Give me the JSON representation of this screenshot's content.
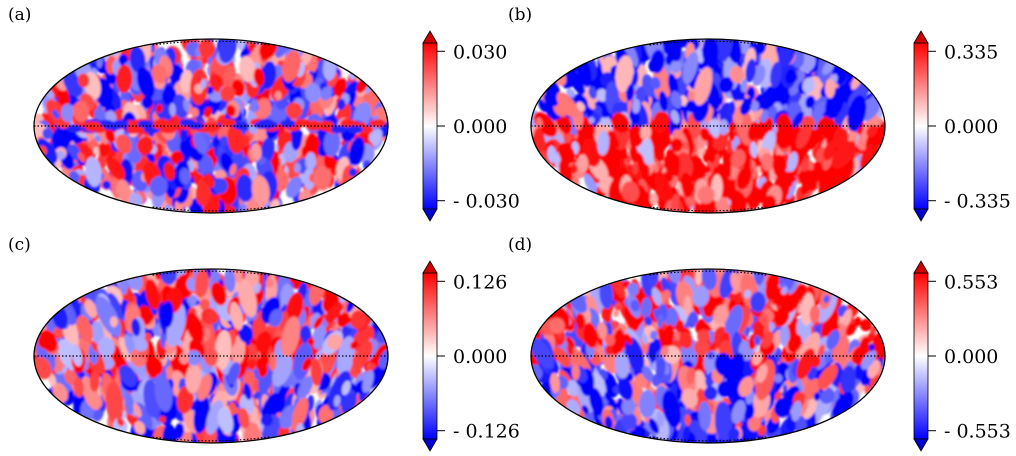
{
  "chart_data": [
    {
      "type": "heatmap",
      "projection": "Mollweide",
      "panel_label": "(a)",
      "colormap": "bwr",
      "colorbar_ticks": [
        "0.030",
        "0.000",
        "- 0.030"
      ],
      "colorbar_tick_values": [
        0.03,
        0.0,
        -0.03
      ],
      "vmin": -0.03,
      "vmax": 0.03,
      "dominant_pattern": "mixed",
      "seed": 11
    },
    {
      "type": "heatmap",
      "projection": "Mollweide",
      "panel_label": "(b)",
      "colormap": "bwr",
      "colorbar_ticks": [
        "0.335",
        "0.000",
        "- 0.335"
      ],
      "colorbar_tick_values": [
        0.335,
        0.0,
        -0.335
      ],
      "vmin": -0.335,
      "vmax": 0.335,
      "dominant_pattern": "blue-north-red-south",
      "seed": 23
    },
    {
      "type": "heatmap",
      "projection": "Mollweide",
      "panel_label": "(c)",
      "colormap": "bwr",
      "colorbar_ticks": [
        "0.126",
        "0.000",
        "- 0.126"
      ],
      "colorbar_tick_values": [
        0.126,
        0.0,
        -0.126
      ],
      "vmin": -0.126,
      "vmax": 0.126,
      "dominant_pattern": "red-equator-blue-poles",
      "seed": 37
    },
    {
      "type": "heatmap",
      "projection": "Mollweide",
      "panel_label": "(d)",
      "colormap": "bwr",
      "colorbar_ticks": [
        "0.553",
        "0.000",
        "- 0.553"
      ],
      "colorbar_tick_values": [
        0.553,
        0.0,
        -0.553
      ],
      "vmin": -0.553,
      "vmax": 0.553,
      "dominant_pattern": "red-north-blue-south",
      "seed": 53
    }
  ]
}
